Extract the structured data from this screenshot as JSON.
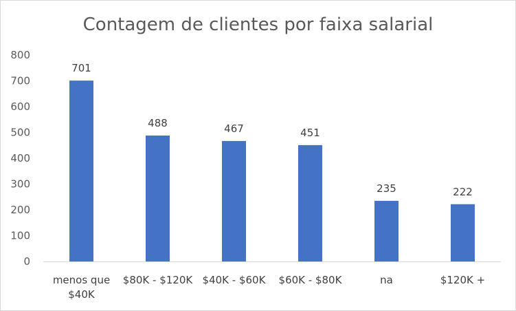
{
  "chart_data": {
    "type": "bar",
    "title": "Contagem de clientes por faixa salarial",
    "categories": [
      [
        "menos que",
        "$40K"
      ],
      [
        "$80K - $120K"
      ],
      [
        "$40K - $60K"
      ],
      [
        "$60K - $80K"
      ],
      [
        "na"
      ],
      [
        "$120K +"
      ]
    ],
    "values": [
      701,
      488,
      467,
      451,
      235,
      222
    ],
    "ylim": [
      0,
      800
    ],
    "yticks": [
      0,
      100,
      200,
      300,
      400,
      500,
      600,
      700,
      800
    ],
    "grid": false,
    "legend": "none",
    "bar_color": "#4472C4",
    "axis_color": "#d9d9d9"
  }
}
